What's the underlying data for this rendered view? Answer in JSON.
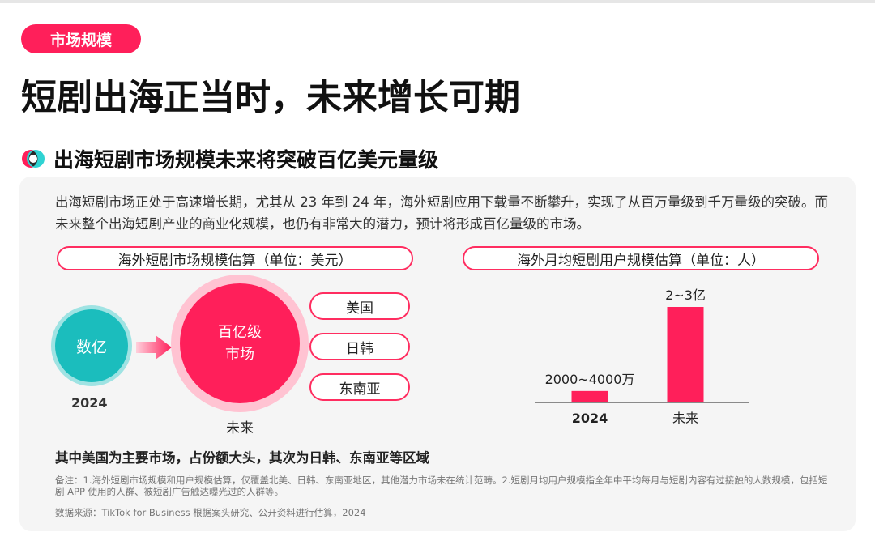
{
  "tag": "市场规模",
  "main_title": "短剧出海正当时，未来增长可期",
  "sub_title": "出海短剧市场规模未来将突破百亿美元量级",
  "intro": "出海短剧市场正处于高速增长期，尤其从 23 年到 24 年，海外短剧应用下载量不断攀升，实现了从百万量级到千万量级的突破。而未来整个出海短剧产业的商业化规模，也仍有非常大的潜力，预计将形成百亿量级的市场。",
  "left_panel": {
    "header": "海外短剧市场规模估算（单位：美元）",
    "current": {
      "value": "数亿",
      "year": "2024"
    },
    "future": {
      "value_line1": "百亿级",
      "value_line2": "市场",
      "label": "未来"
    },
    "regions": [
      "美国",
      "日韩",
      "东南亚"
    ]
  },
  "right_panel": {
    "header": "海外月均短剧用户规模估算（单位：人）"
  },
  "chart_data": {
    "type": "bar",
    "categories": [
      "2024",
      "未来"
    ],
    "values": [
      30000000,
      250000000
    ],
    "data_labels": [
      "2000~4000万",
      "2~3亿"
    ],
    "bar_color": "#ff1f5a"
  },
  "summary": "其中美国为主要市场，占份额大头，其次为日韩、东南亚等区域",
  "note": "备注：1.海外短剧市场规模和用户规模估算，仅覆盖北美、日韩、东南亚地区，其他潜力市场未在统计范畴。2.短剧月均用户规模指全年中平均每月与短剧内容有过接触的人数规模，包括短剧 APP 使用的人群、被短剧广告触达曝光过的人群等。",
  "source": "数据来源：TikTok for Business 根据案头研究、公开资料进行估算，2024",
  "colors": {
    "accent": "#ff1f5a",
    "teal": "#1bbdbd"
  }
}
